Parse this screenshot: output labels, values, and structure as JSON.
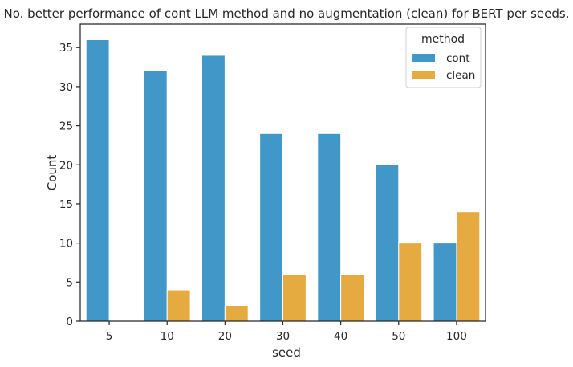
{
  "chart_data": {
    "type": "bar",
    "title": "No. better performance of cont LLM method and no augmentation (clean) for BERT per seeds.",
    "xlabel": "seed",
    "ylabel": "Count",
    "categories": [
      "5",
      "10",
      "20",
      "30",
      "40",
      "50",
      "100"
    ],
    "series": [
      {
        "name": "cont",
        "values": [
          36,
          32,
          34,
          24,
          24,
          20,
          10
        ],
        "color": "#4197c8"
      },
      {
        "name": "clean",
        "values": [
          0,
          4,
          2,
          6,
          6,
          10,
          14
        ],
        "color": "#e5aa40"
      }
    ],
    "ylim": [
      0,
      38
    ],
    "yticks": [
      0,
      5,
      10,
      15,
      20,
      25,
      30,
      35
    ],
    "grid": false,
    "legend": {
      "title": "method",
      "placement": "top-right"
    }
  }
}
